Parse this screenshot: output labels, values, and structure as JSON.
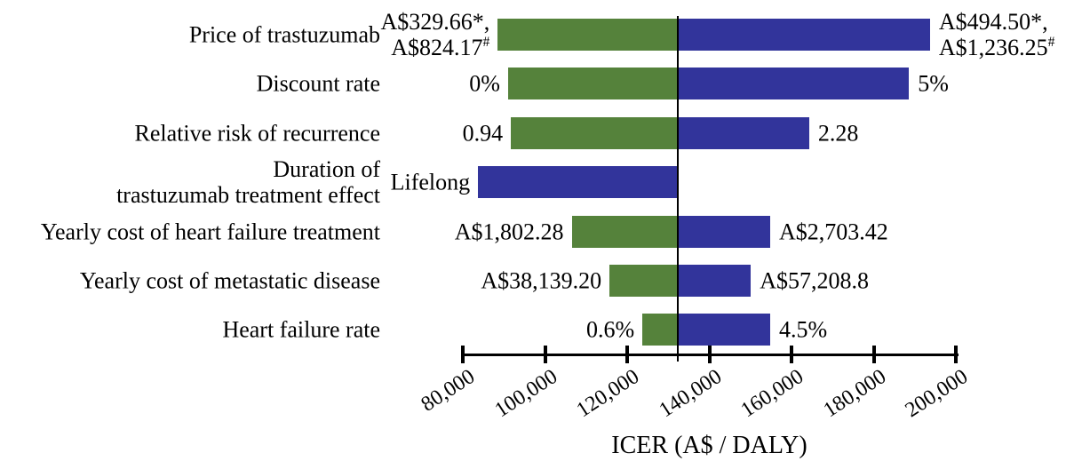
{
  "chart_data": {
    "type": "bar",
    "variant": "tornado-sensitivity",
    "title": "",
    "xlabel": "ICER (A$ / DALY)",
    "axis": {
      "min": 80000,
      "max": 200000,
      "tick_step": 20000,
      "tick_labels": [
        "80,000",
        "100,000",
        "120,000",
        "140,000",
        "160,000",
        "180,000",
        "200,000"
      ],
      "baseline_value": 132300,
      "grid": false
    },
    "colors": {
      "low": "#55823B",
      "high": "#32349B",
      "axis": "#000000",
      "text": "#000000",
      "background": "#FFFFFF"
    },
    "rows": [
      {
        "id": "price-of-trastuzumab",
        "label_lines": [
          "Price of trastuzumab"
        ],
        "left": {
          "label_lines": [
            "A$329.66*,",
            "A$824.17#"
          ],
          "value": 88500,
          "color": "low"
        },
        "right": {
          "label_lines": [
            "A$494.50*,",
            "A$1,236.25#"
          ],
          "value": 193700,
          "color": "high"
        }
      },
      {
        "id": "discount-rate",
        "label_lines": [
          "Discount rate"
        ],
        "left": {
          "label_lines": [
            "0%"
          ],
          "value": 91000,
          "color": "low"
        },
        "right": {
          "label_lines": [
            "5%"
          ],
          "value": 188600,
          "color": "high"
        }
      },
      {
        "id": "relative-risk-of-recurrence",
        "label_lines": [
          "Relative risk of recurrence"
        ],
        "left": {
          "label_lines": [
            "0.94"
          ],
          "value": 91700,
          "color": "low"
        },
        "right": {
          "label_lines": [
            "2.28"
          ],
          "value": 164300,
          "color": "high"
        }
      },
      {
        "id": "duration-of-trastuzumab-treatment-effect",
        "label_lines": [
          "Duration of",
          "trastuzumab treatment effect"
        ],
        "left": {
          "label_lines": [
            "Lifelong"
          ],
          "value": 83700,
          "color": "high"
        },
        "right": null
      },
      {
        "id": "yearly-cost-of-heart-failure-treatment",
        "label_lines": [
          "Yearly cost of heart failure treatment"
        ],
        "left": {
          "label_lines": [
            "A$1,802.28"
          ],
          "value": 106500,
          "color": "low"
        },
        "right": {
          "label_lines": [
            "A$2,703.42"
          ],
          "value": 154800,
          "color": "high"
        }
      },
      {
        "id": "yearly-cost-of-metastatic-disease",
        "label_lines": [
          "Yearly cost of metastatic disease"
        ],
        "left": {
          "label_lines": [
            "A$38,139.20"
          ],
          "value": 115700,
          "color": "low"
        },
        "right": {
          "label_lines": [
            "A$57,208.8"
          ],
          "value": 150100,
          "color": "high"
        }
      },
      {
        "id": "heart-failure-rate",
        "label_lines": [
          "Heart failure rate"
        ],
        "left": {
          "label_lines": [
            "0.6%"
          ],
          "value": 123700,
          "color": "low"
        },
        "right": {
          "label_lines": [
            "4.5%"
          ],
          "value": 154800,
          "color": "high"
        }
      }
    ]
  }
}
